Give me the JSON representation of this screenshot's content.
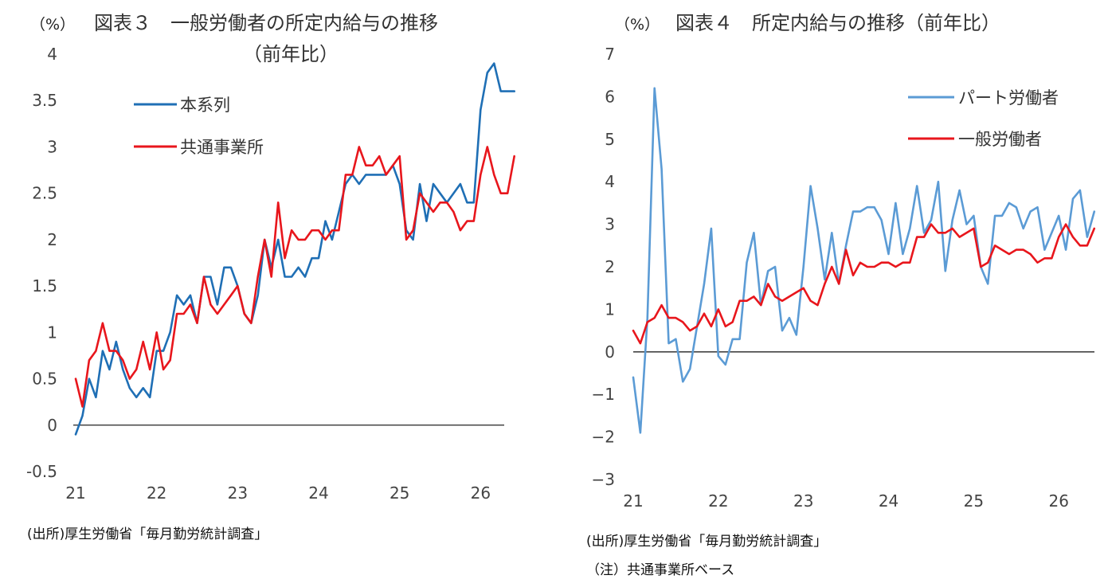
{
  "chart_data": [
    {
      "type": "line",
      "unit_label": "（%）",
      "title": "図表３　一般労働者の所定内給与の推移",
      "subtitle": "（前年比）",
      "source": "(出所)厚生労働省「毎月勤労統計調査」",
      "xlim": [
        21,
        26.4
      ],
      "ylim": [
        -0.5,
        4
      ],
      "x_ticks": [
        21,
        22,
        23,
        24,
        25,
        26
      ],
      "y_ticks": [
        -0.5,
        0,
        0.5,
        1,
        1.5,
        2,
        2.5,
        3,
        3.5,
        4
      ],
      "y_tick_labels": [
        "-0.5",
        "0",
        "0.5",
        "1",
        "1.5",
        "2",
        "2.5",
        "3",
        "3.5",
        "4"
      ],
      "grid": false,
      "legend_position": "upper-left",
      "zero_line": true,
      "x_start": 21,
      "x_step": 0.08333,
      "series": [
        {
          "name": "本系列",
          "color": "#1f6fb5",
          "values": [
            -0.1,
            0.1,
            0.5,
            0.3,
            0.8,
            0.6,
            0.9,
            0.6,
            0.4,
            0.3,
            0.4,
            0.3,
            0.8,
            0.8,
            1.0,
            1.4,
            1.3,
            1.4,
            1.1,
            1.6,
            1.6,
            1.3,
            1.7,
            1.7,
            1.5,
            1.2,
            1.1,
            1.4,
            2.0,
            1.7,
            2.0,
            1.6,
            1.6,
            1.7,
            1.6,
            1.8,
            1.8,
            2.2,
            2.0,
            2.3,
            2.6,
            2.7,
            2.6,
            2.7,
            2.7,
            2.7,
            2.7,
            2.8,
            2.6,
            2.1,
            2.0,
            2.6,
            2.2,
            2.6,
            2.5,
            2.4,
            2.5,
            2.6,
            2.4,
            2.4,
            3.4,
            3.8,
            3.9,
            3.6,
            3.6,
            3.6
          ]
        },
        {
          "name": "共通事業所",
          "color": "#e8161c",
          "values": [
            0.5,
            0.2,
            0.7,
            0.8,
            1.1,
            0.8,
            0.8,
            0.7,
            0.5,
            0.6,
            0.9,
            0.6,
            1.0,
            0.6,
            0.7,
            1.2,
            1.2,
            1.3,
            1.1,
            1.6,
            1.3,
            1.2,
            1.3,
            1.4,
            1.5,
            1.2,
            1.1,
            1.6,
            2.0,
            1.6,
            2.4,
            1.8,
            2.1,
            2.0,
            2.0,
            2.1,
            2.1,
            2.0,
            2.1,
            2.1,
            2.7,
            2.7,
            3.0,
            2.8,
            2.8,
            2.9,
            2.7,
            2.8,
            2.9,
            2.0,
            2.1,
            2.5,
            2.4,
            2.3,
            2.4,
            2.4,
            2.3,
            2.1,
            2.2,
            2.2,
            2.7,
            3.0,
            2.7,
            2.5,
            2.5,
            2.9
          ]
        }
      ]
    },
    {
      "type": "line",
      "unit_label": "（%）",
      "title": "図表４　所定内給与の推移（前年比）",
      "source": "(出所)厚生労働省「毎月勤労統計調査」",
      "note": "（注）共通事業所ベース",
      "xlim": [
        21,
        26.4
      ],
      "ylim": [
        -3,
        7
      ],
      "x_ticks": [
        21,
        22,
        23,
        24,
        25,
        26
      ],
      "y_ticks": [
        -3,
        -2,
        -1,
        0,
        1,
        2,
        3,
        4,
        5,
        6,
        7
      ],
      "y_tick_labels": [
        "−3",
        "−2",
        "−1",
        "0",
        "1",
        "2",
        "3",
        "4",
        "5",
        "6",
        "7"
      ],
      "grid": false,
      "legend_position": "upper-right",
      "zero_line": true,
      "x_start": 21,
      "x_step": 0.08333,
      "series": [
        {
          "name": "パート労働者",
          "color": "#5b9bd5",
          "values": [
            -0.6,
            -1.9,
            0.8,
            6.2,
            4.3,
            0.2,
            0.3,
            -0.7,
            -0.4,
            0.6,
            1.6,
            2.9,
            -0.1,
            -0.3,
            0.3,
            0.3,
            2.1,
            2.8,
            1.1,
            1.9,
            2.0,
            0.5,
            0.8,
            0.4,
            2.0,
            3.9,
            2.9,
            1.7,
            2.8,
            1.6,
            2.5,
            3.3,
            3.3,
            3.4,
            3.4,
            3.1,
            2.3,
            3.5,
            2.3,
            2.9,
            3.9,
            2.8,
            3.1,
            4.0,
            1.9,
            3.1,
            3.8,
            3.0,
            3.2,
            2.0,
            1.6,
            3.2,
            3.2,
            3.5,
            3.4,
            2.9,
            3.3,
            3.4,
            2.4,
            2.8,
            3.2,
            2.4,
            3.6,
            3.8,
            2.7,
            3.3
          ]
        },
        {
          "name": "一般労働者",
          "color": "#e8161c",
          "values": [
            0.5,
            0.2,
            0.7,
            0.8,
            1.1,
            0.8,
            0.8,
            0.7,
            0.5,
            0.6,
            0.9,
            0.6,
            1.0,
            0.6,
            0.7,
            1.2,
            1.2,
            1.3,
            1.1,
            1.6,
            1.3,
            1.2,
            1.3,
            1.4,
            1.5,
            1.2,
            1.1,
            1.6,
            2.0,
            1.6,
            2.4,
            1.8,
            2.1,
            2.0,
            2.0,
            2.1,
            2.1,
            2.0,
            2.1,
            2.1,
            2.7,
            2.7,
            3.0,
            2.8,
            2.8,
            2.9,
            2.7,
            2.8,
            2.9,
            2.0,
            2.1,
            2.5,
            2.4,
            2.3,
            2.4,
            2.4,
            2.3,
            2.1,
            2.2,
            2.2,
            2.7,
            3.0,
            2.7,
            2.5,
            2.5,
            2.9
          ]
        }
      ]
    }
  ]
}
